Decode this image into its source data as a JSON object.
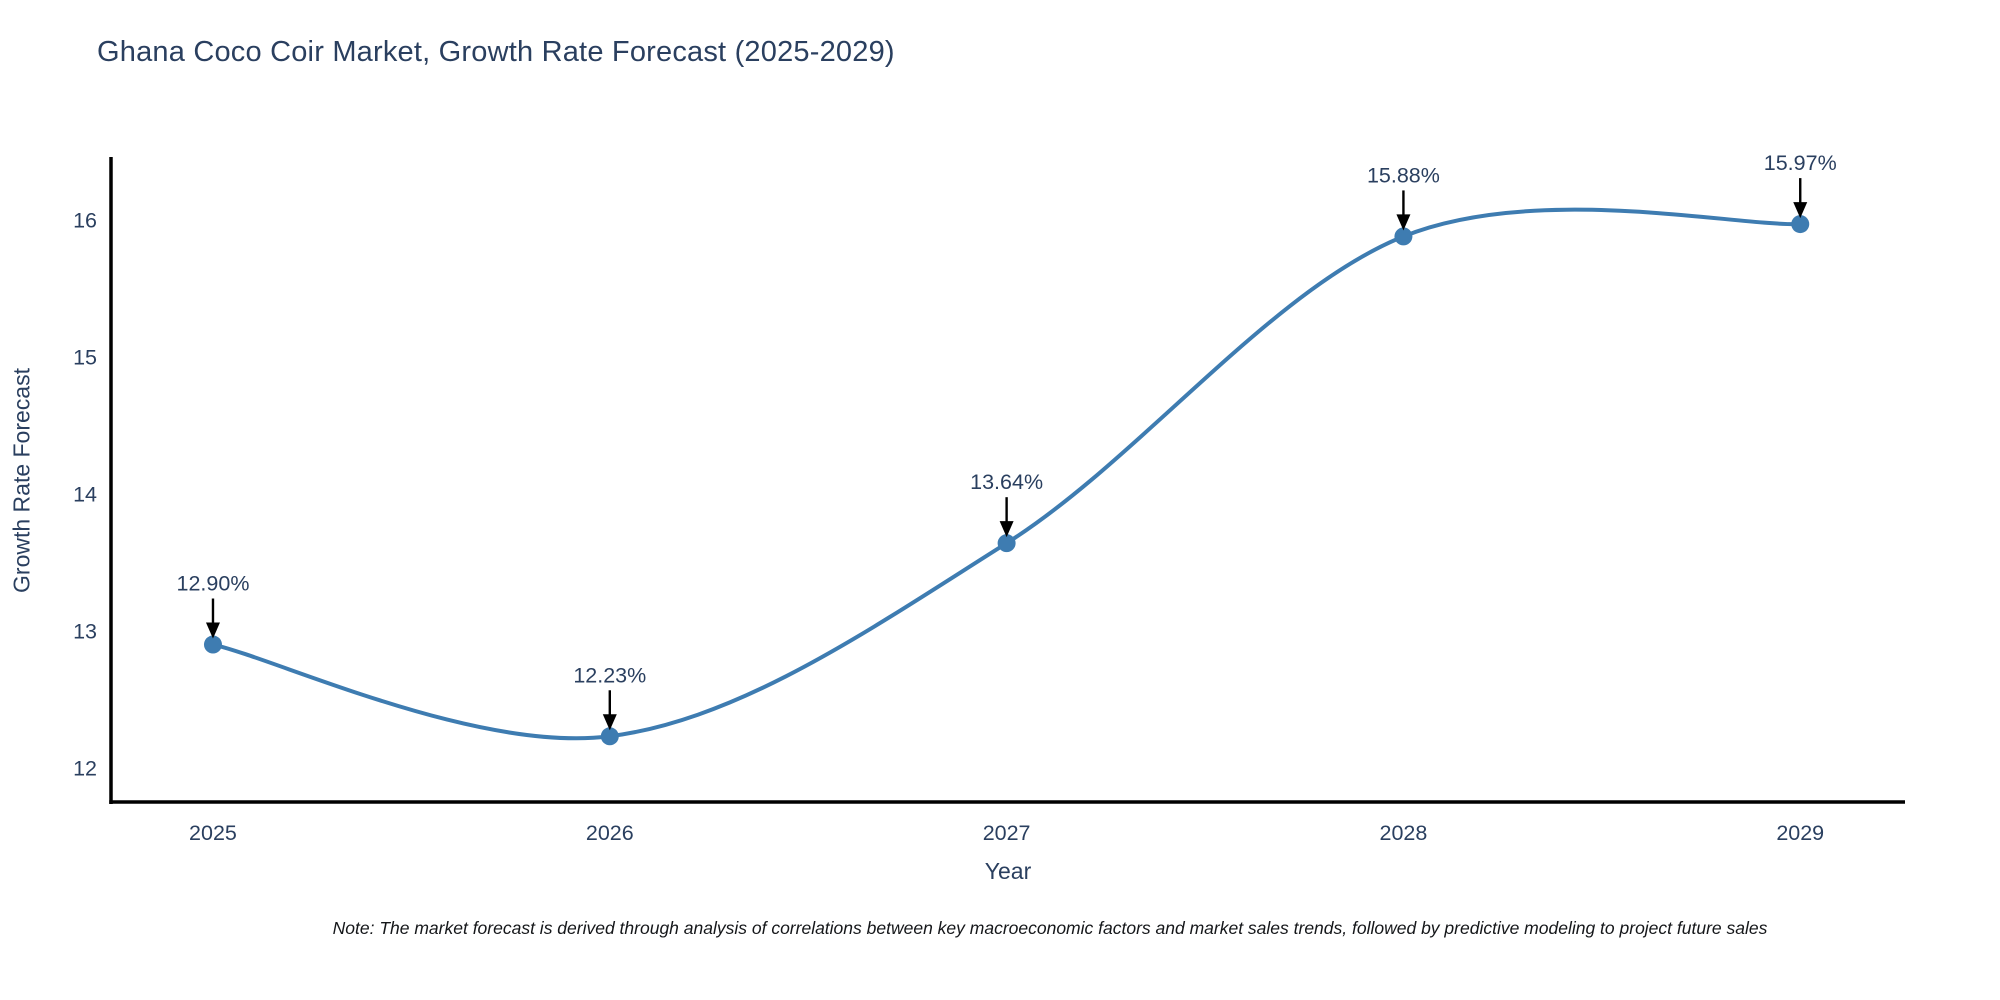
{
  "note": "Note: The market forecast is derived through analysis of correlations between key macroeconomic factors and market sales trends, followed by predictive modeling to project future sales",
  "chart_data": {
    "type": "line",
    "title": "Ghana Coco Coir Market, Growth Rate Forecast (2025-2029)",
    "xlabel": "Year",
    "ylabel": "Growth Rate Forecast",
    "x": [
      2025,
      2026,
      2027,
      2028,
      2029
    ],
    "series": [
      {
        "name": "Growth Rate Forecast",
        "values": [
          12.9,
          12.23,
          13.64,
          15.88,
          15.97
        ]
      }
    ],
    "point_labels": [
      "12.90%",
      "12.23%",
      "13.64%",
      "15.88%",
      "15.97%"
    ],
    "yticks": [
      12,
      13,
      14,
      15,
      16
    ],
    "ylim": [
      11.75,
      16.46
    ],
    "xlim": [
      2024.743,
      2029.264
    ],
    "line_shape": "spline",
    "grid": false,
    "legend_position": "none",
    "colors": {
      "line": "#3e7cb1",
      "marker": "#3e7cb1",
      "axis": "#000000",
      "text": "#2a3f5f",
      "annotation_arrow": "#000000"
    }
  }
}
